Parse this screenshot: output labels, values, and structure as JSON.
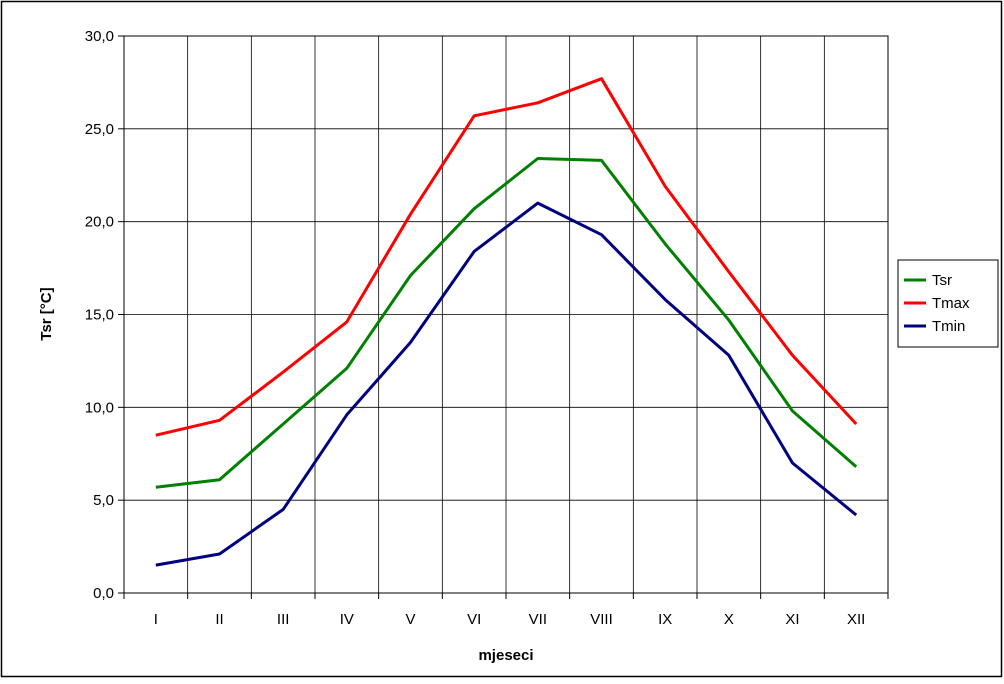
{
  "chart_data": {
    "type": "line",
    "xlabel": "mjeseci",
    "ylabel": "Tsr [°C]",
    "categories": [
      "I",
      "II",
      "III",
      "IV",
      "V",
      "VI",
      "VII",
      "VIII",
      "IX",
      "X",
      "XI",
      "XII"
    ],
    "ylim": [
      0,
      30
    ],
    "ytick_values": [
      0,
      5,
      10,
      15,
      20,
      25,
      30
    ],
    "ytick_labels": [
      "0,0",
      "5,0",
      "10,0",
      "15,0",
      "20,0",
      "25,0",
      "30,0"
    ],
    "grid": true,
    "legend_position": "right",
    "series": [
      {
        "name": "Tsr",
        "color": "#008000",
        "values": [
          5.7,
          6.1,
          9.1,
          12.1,
          17.1,
          20.7,
          23.4,
          23.3,
          18.8,
          14.7,
          9.8,
          6.8
        ]
      },
      {
        "name": "Tmax",
        "color": "#ff0000",
        "values": [
          8.5,
          9.3,
          11.9,
          14.6,
          20.4,
          25.7,
          26.4,
          27.7,
          21.9,
          17.3,
          12.8,
          9.1
        ]
      },
      {
        "name": "Tmin",
        "color": "#000080",
        "values": [
          1.5,
          2.1,
          4.5,
          9.6,
          13.5,
          18.4,
          21.0,
          19.3,
          15.8,
          12.8,
          7.0,
          4.2
        ]
      }
    ]
  }
}
